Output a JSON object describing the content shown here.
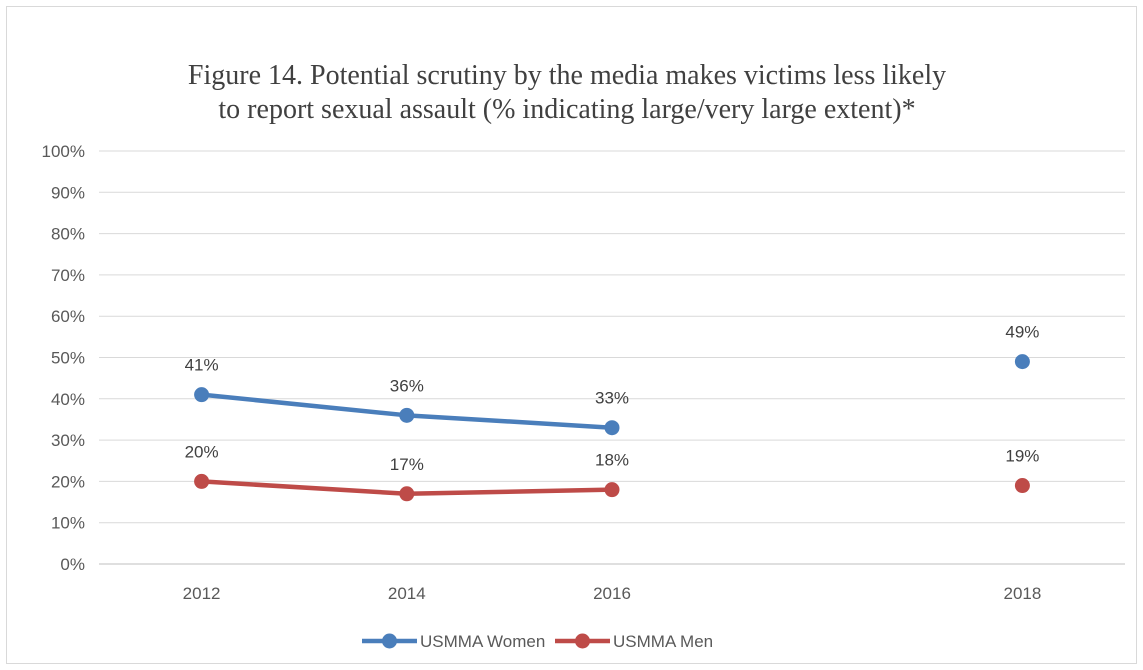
{
  "chart_data": {
    "type": "line",
    "title_lines": [
      "Figure 14.  Potential scrutiny by the media makes victims less likely",
      "to report sexual assault (% indicating large/very large extent)*"
    ],
    "categories": [
      "2012",
      "2014",
      "2016",
      "",
      "2018"
    ],
    "y_ticks": [
      "0%",
      "10%",
      "20%",
      "30%",
      "40%",
      "50%",
      "60%",
      "70%",
      "80%",
      "90%",
      "100%"
    ],
    "ylim": [
      0,
      100
    ],
    "grid": true,
    "legend_position": "bottom",
    "series": [
      {
        "name": "USMMA Women",
        "color": "#4a7ebb",
        "values": [
          41,
          36,
          33,
          null,
          49
        ],
        "labels": [
          "41%",
          "36%",
          "33%",
          "",
          "49%"
        ]
      },
      {
        "name": "USMMA Men",
        "color": "#be4b48",
        "values": [
          20,
          17,
          18,
          null,
          19
        ],
        "labels": [
          "20%",
          "17%",
          "18%",
          "",
          "19%"
        ]
      }
    ]
  }
}
